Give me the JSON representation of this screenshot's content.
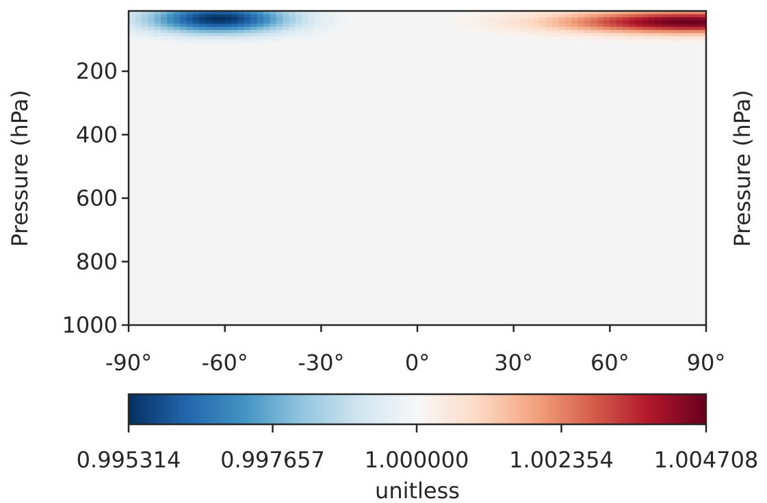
{
  "chart_data": {
    "type": "heatmap",
    "title": "",
    "xlabel": "",
    "ylabel": "Pressure (hPa)",
    "ylabel_right": "Pressure (hPa)",
    "x_ticks": [
      {
        "value": -90,
        "label": "-90°"
      },
      {
        "value": -60,
        "label": "-60°"
      },
      {
        "value": -30,
        "label": "-30°"
      },
      {
        "value": 0,
        "label": "0°"
      },
      {
        "value": 30,
        "label": "30°"
      },
      {
        "value": 60,
        "label": "60°"
      },
      {
        "value": 90,
        "label": "90°"
      }
    ],
    "y_ticks": [
      {
        "value": 200,
        "label": "200"
      },
      {
        "value": 400,
        "label": "400"
      },
      {
        "value": 600,
        "label": "600"
      },
      {
        "value": 800,
        "label": "800"
      },
      {
        "value": 1000,
        "label": "1000"
      }
    ],
    "xlim": [
      -90,
      90
    ],
    "ylim": [
      1000,
      10
    ],
    "grid": false,
    "colormap": "RdBu_r",
    "colormap_stops": [
      "#053061",
      "#2166ac",
      "#4393c3",
      "#92c5de",
      "#d1e5f0",
      "#f7f7f7",
      "#fddbc7",
      "#f4a582",
      "#d6604d",
      "#b2182b",
      "#67001f"
    ],
    "background_value_color": "#f4f4f4",
    "colorbar": {
      "range": [
        0.995314,
        1.004708
      ],
      "label": "unitless",
      "orientation": "horizontal",
      "ticks": [
        {
          "value": 0.995314,
          "label": "0.995314"
        },
        {
          "value": 0.997657,
          "label": "0.997657"
        },
        {
          "value": 1.0,
          "label": "1.000000"
        },
        {
          "value": 1.002354,
          "label": "1.002354"
        },
        {
          "value": 1.004708,
          "label": "1.004708"
        }
      ]
    },
    "features": [
      {
        "lat_range": [
          -90,
          -5
        ],
        "pressure_range": [
          10,
          150
        ],
        "peak_lat": -62,
        "peak_pressure": 35,
        "peak_value": 0.995314,
        "description": "minimum near southern high-latitude upper levels"
      },
      {
        "lat_range": [
          -5,
          90
        ],
        "pressure_range": [
          10,
          140
        ],
        "peak_lat": 85,
        "peak_pressure": 45,
        "peak_value": 1.004708,
        "description": "maximum near northern high-latitude upper levels"
      }
    ],
    "default_value": 1.0
  }
}
